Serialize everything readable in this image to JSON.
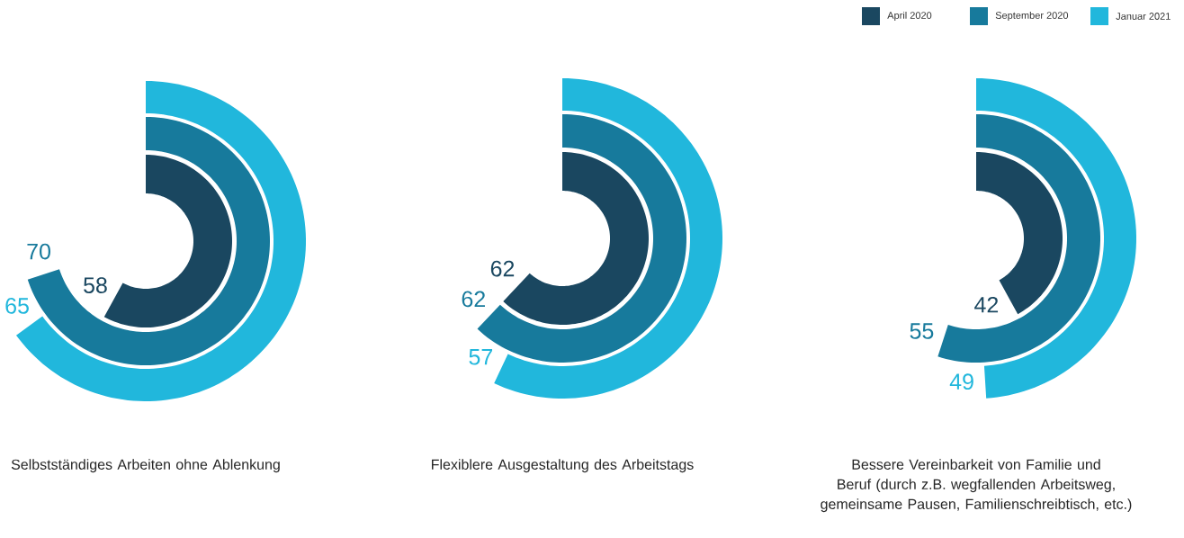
{
  "chart_data": [
    {
      "type": "other",
      "categories": [
        "Selbstständiges Arbeiten ohne Ablenkung"
      ],
      "data_labels": true,
      "series": [
        {
          "color": "#1a4760",
          "values": [
            58
          ]
        },
        {
          "color": "#177a9c",
          "values": [
            70
          ]
        },
        {
          "color": "#21b7dc",
          "values": [
            65
          ]
        }
      ]
    },
    {
      "type": "other",
      "categories": [
        "Flexiblere Ausgestaltung des Arbeitstags"
      ],
      "data_labels": true,
      "series": [
        {
          "color": "#1a4760",
          "values": [
            62
          ]
        },
        {
          "color": "#177a9c",
          "values": [
            62
          ]
        },
        {
          "color": "#21b7dc",
          "values": [
            57
          ]
        }
      ]
    },
    {
      "type": "other",
      "categories": [
        "Bessere Vereinbarkeit von Familie und Beruf (durch z.B. wegfallenden Arbeitsweg, gemeinsame Pausen, Familienschreibtisch, etc.)"
      ],
      "data_labels": true,
      "legend": "top right",
      "series": [
        {
          "name": "April 2020",
          "color": "#1a4760",
          "values": [
            42
          ]
        },
        {
          "name": "September 2020",
          "color": "#177a9c",
          "values": [
            55
          ]
        },
        {
          "name": "Januar 2021",
          "color": "#21b7dc",
          "values": [
            49
          ]
        }
      ]
    }
  ]
}
